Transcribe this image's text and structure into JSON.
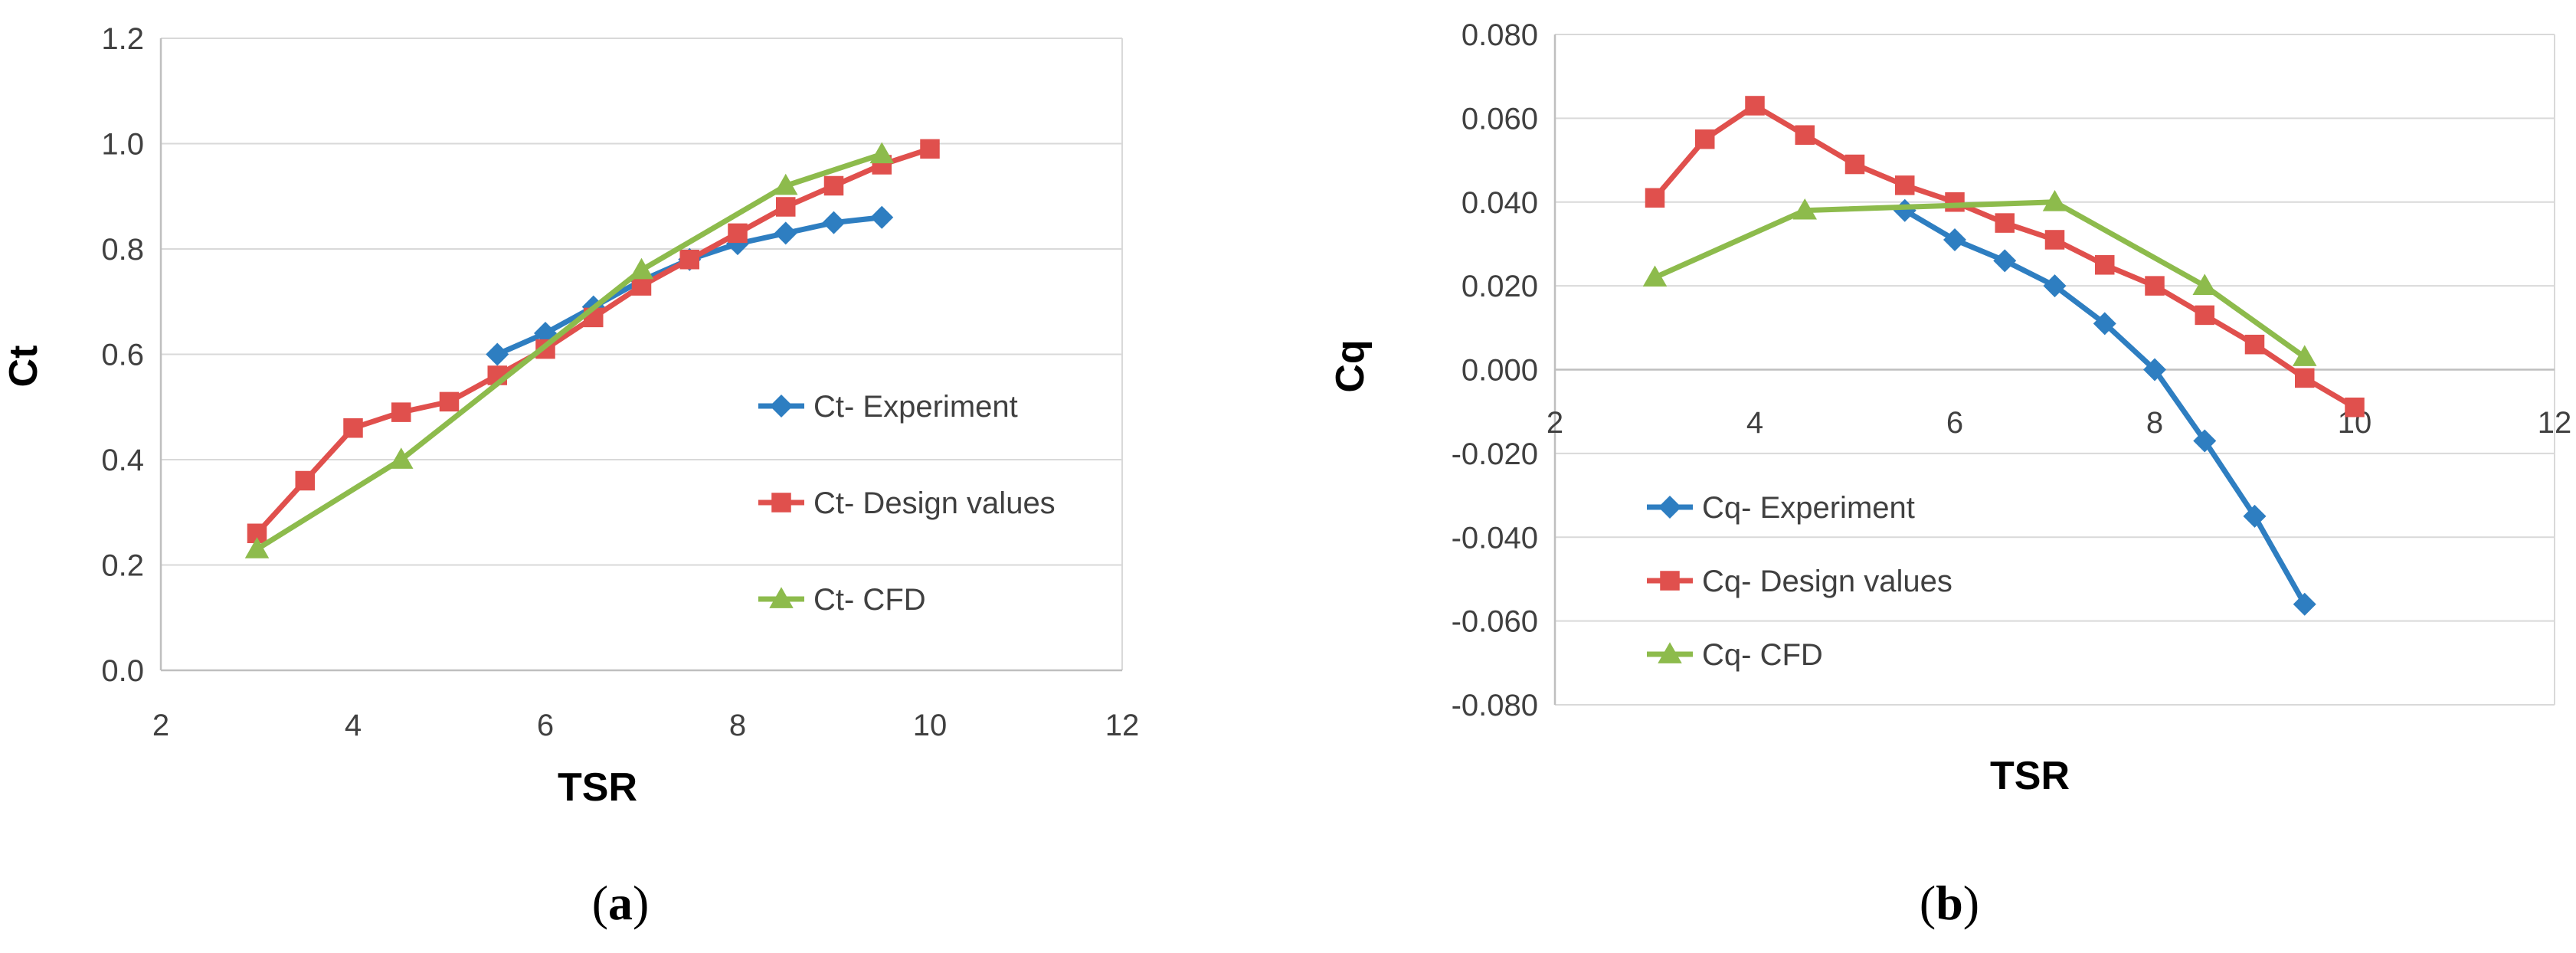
{
  "chart_data": [
    {
      "type": "line",
      "panel_label": "a",
      "xlabel": "TSR",
      "ylabel": "Ct",
      "xlim": [
        2,
        12
      ],
      "ylim": [
        0,
        1.2
      ],
      "x_ticks": [
        "2",
        "4",
        "6",
        "8",
        "10",
        "12"
      ],
      "y_ticks": [
        "0.0",
        "0.2",
        "0.4",
        "0.6",
        "0.8",
        "1.0",
        "1.2"
      ],
      "grid": "horizontal",
      "legend_position": "right",
      "series": [
        {
          "name": "Ct- Experiment",
          "color": "#2E7EC1",
          "marker": "diamond",
          "x": [
            5.5,
            6,
            6.5,
            7,
            7.5,
            8,
            8.5,
            9,
            9.5
          ],
          "y": [
            0.6,
            0.64,
            0.69,
            0.74,
            0.78,
            0.81,
            0.83,
            0.85,
            0.86
          ]
        },
        {
          "name": "Ct- Design values",
          "color": "#E0504D",
          "marker": "square",
          "x": [
            3,
            3.5,
            4,
            4.5,
            5,
            5.5,
            6,
            6.5,
            7,
            7.5,
            8,
            8.5,
            9,
            9.5,
            10
          ],
          "y": [
            0.26,
            0.36,
            0.46,
            0.49,
            0.51,
            0.56,
            0.61,
            0.67,
            0.73,
            0.78,
            0.83,
            0.88,
            0.92,
            0.96,
            0.99
          ]
        },
        {
          "name": "Ct- CFD",
          "color": "#8DBB4C",
          "marker": "triangle",
          "x": [
            3,
            4.5,
            7,
            8.5,
            9.5
          ],
          "y": [
            0.23,
            0.4,
            0.76,
            0.92,
            0.98
          ]
        }
      ]
    },
    {
      "type": "line",
      "panel_label": "b",
      "xlabel": "TSR",
      "ylabel": "Cq",
      "xlim": [
        2,
        12
      ],
      "ylim": [
        -0.08,
        0.08
      ],
      "x_ticks": [
        "2",
        "4",
        "6",
        "8",
        "10",
        "12"
      ],
      "y_ticks": [
        "-0.080",
        "-0.060",
        "-0.040",
        "-0.020",
        "0.000",
        "0.020",
        "0.040",
        "0.060",
        "0.080"
      ],
      "grid": "horizontal",
      "legend_position": "bottom-left",
      "series": [
        {
          "name": "Cq- Experiment",
          "color": "#2E7EC1",
          "marker": "diamond",
          "x": [
            5.5,
            6,
            6.5,
            7,
            7.5,
            8,
            8.5,
            9,
            9.5
          ],
          "y": [
            0.038,
            0.031,
            0.026,
            0.02,
            0.011,
            0.0,
            -0.017,
            -0.035,
            -0.056
          ]
        },
        {
          "name": "Cq- Design values",
          "color": "#E0504D",
          "marker": "square",
          "x": [
            3,
            3.5,
            4,
            4.5,
            5,
            5.5,
            6,
            6.5,
            7,
            7.5,
            8,
            8.5,
            9,
            9.5,
            10
          ],
          "y": [
            0.041,
            0.055,
            0.063,
            0.056,
            0.049,
            0.044,
            0.04,
            0.035,
            0.031,
            0.025,
            0.02,
            0.013,
            0.006,
            -0.002,
            -0.009
          ]
        },
        {
          "name": "Cq- CFD",
          "color": "#8DBB4C",
          "marker": "triangle",
          "x": [
            3,
            4.5,
            7,
            8.5,
            9.5
          ],
          "y": [
            0.022,
            0.038,
            0.04,
            0.02,
            0.003
          ]
        }
      ]
    }
  ]
}
